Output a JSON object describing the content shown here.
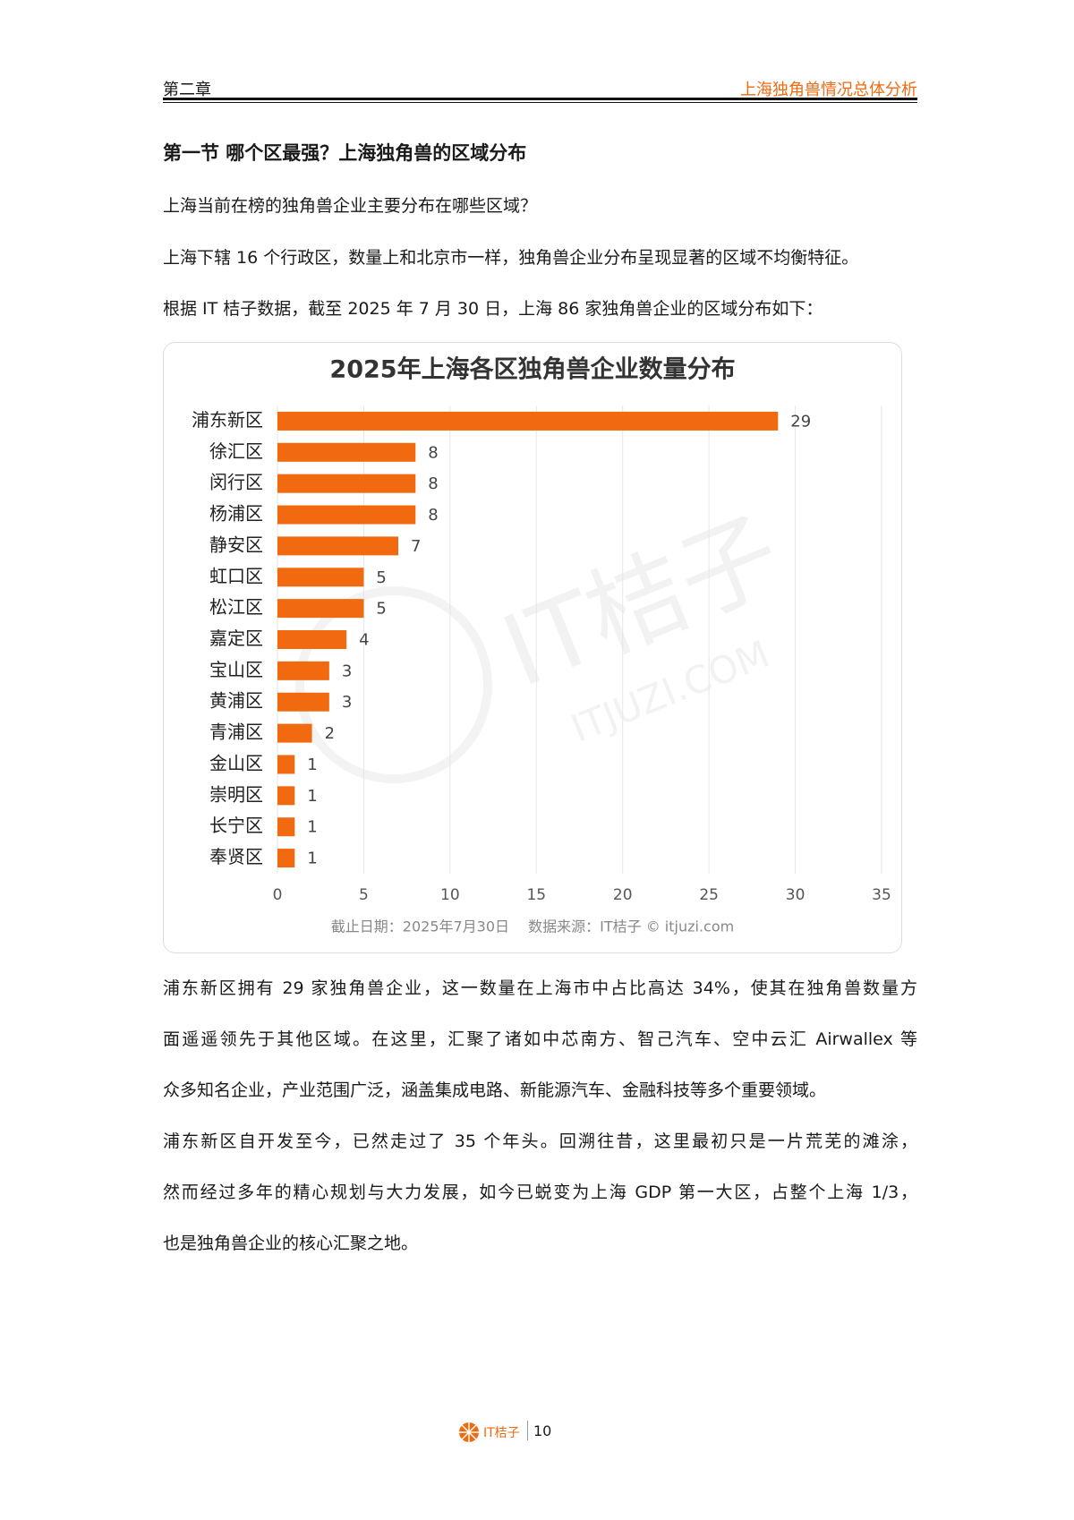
{
  "header": {
    "chapter": "第二章",
    "section_title": "上海独角兽情况总体分析"
  },
  "heading": "第一节  哪个区最强？上海独角兽的区域分布",
  "intro_lines": [
    "上海当前在榜的独角兽企业主要分布在哪些区域？",
    "上海下辖 16 个行政区，数量上和北京市一样，独角兽企业分布呈现显著的区域不均衡特征。",
    "根据 IT 桔子数据，截至 2025 年 7 月 30 日，上海 86 家独角兽企业的区域分布如下："
  ],
  "chart_data": {
    "type": "bar",
    "orientation": "horizontal",
    "title": "2025年上海各区独角兽企业数量分布",
    "categories": [
      "浦东新区",
      "徐汇区",
      "闵行区",
      "杨浦区",
      "静安区",
      "虹口区",
      "松江区",
      "嘉定区",
      "宝山区",
      "黄浦区",
      "青浦区",
      "金山区",
      "崇明区",
      "长宁区",
      "奉贤区"
    ],
    "values": [
      29,
      8,
      8,
      8,
      7,
      5,
      5,
      4,
      3,
      3,
      2,
      1,
      1,
      1,
      1
    ],
    "color": "#f26a10",
    "xlim": [
      0,
      35
    ],
    "xticks": [
      0,
      5,
      10,
      15,
      20,
      25,
      30,
      35
    ],
    "grid": true,
    "note": "截止日期：2025年7月30日　 数据来源：IT桔子 © itjuzi.com",
    "watermark": [
      "IT桔子",
      "ITJUZI.COM"
    ]
  },
  "body_lines": [
    "浦东新区拥有 29 家独角兽企业，这一数量在上海市中占比高达 34%，使其在独角兽数量方",
    "面遥遥领先于其他区域。在这里，汇聚了诸如中芯南方、智己汽车、空中云汇 Airwallex 等",
    "众多知名企业，产业范围广泛，涵盖集成电路、新能源汽车、金融科技等多个重要领域。",
    "浦东新区自开发至今，已然走过了 35 个年头。回溯往昔，这里最初只是一片荒芜的滩涂，",
    "然而经过多年的精心规划与大力发展，如今已蜕变为上海 GDP 第一大区，占整个上海 1/3，",
    "也是独角兽企业的核心汇聚之地。"
  ],
  "footer": {
    "logo": "IT桔子",
    "page": "10"
  }
}
